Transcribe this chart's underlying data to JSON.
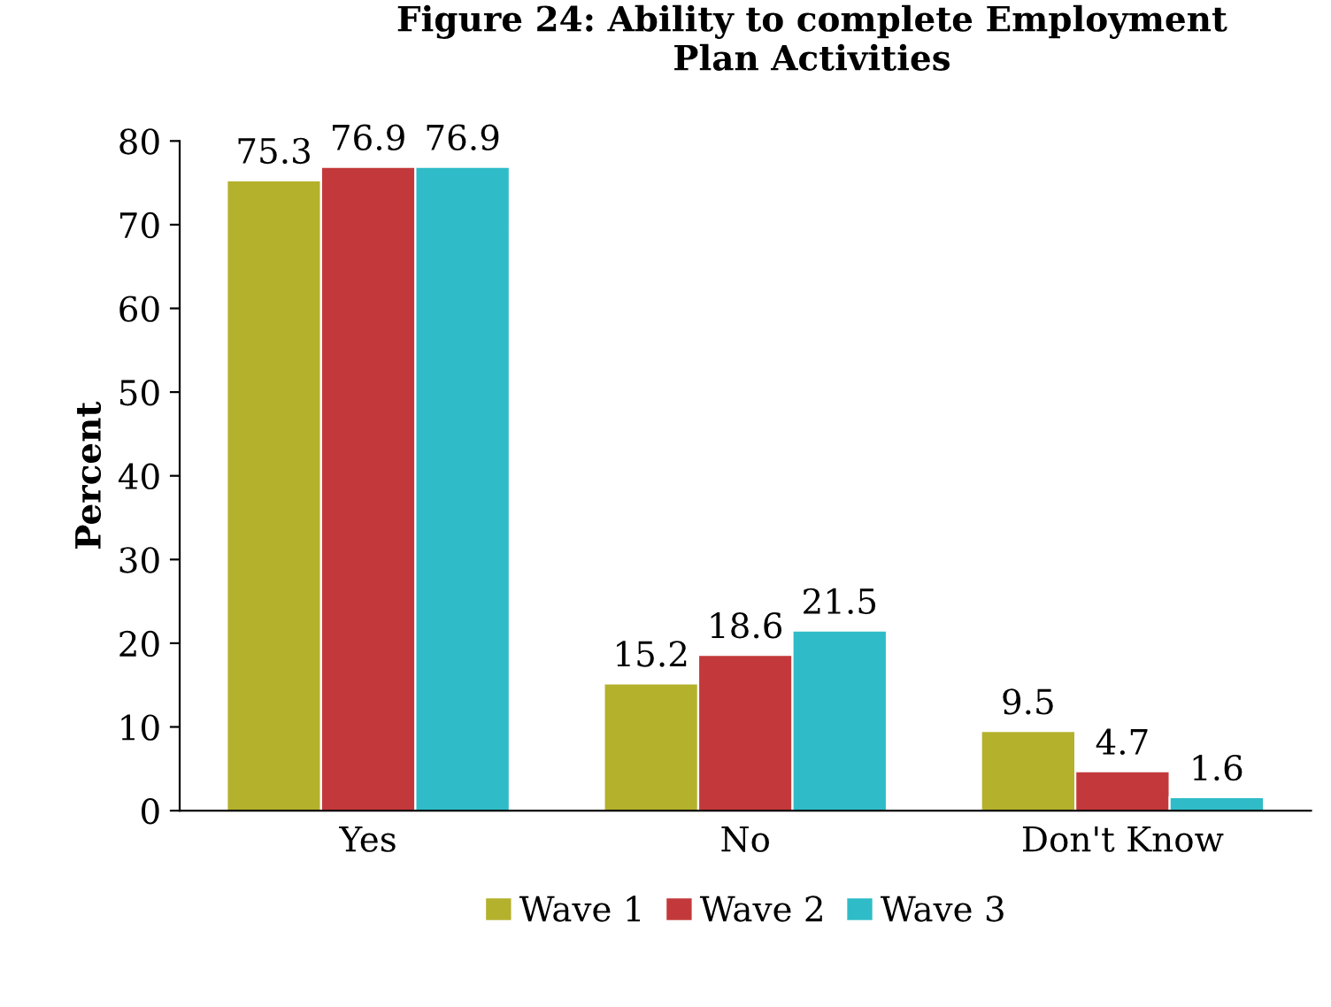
{
  "chart_data": {
    "type": "bar",
    "title": "Figure 24: Ability to complete Employment\nPlan Activities",
    "ylabel": "Percent",
    "categories": [
      "Yes",
      "No",
      "Don't Know"
    ],
    "series": [
      {
        "name": "Wave 1",
        "color": "#b4b12c",
        "values": [
          75.3,
          15.2,
          9.5
        ]
      },
      {
        "name": "Wave 2",
        "color": "#c3393b",
        "values": [
          76.9,
          18.6,
          4.7
        ]
      },
      {
        "name": "Wave 3",
        "color": "#2fbcc8",
        "values": [
          76.9,
          21.5,
          1.6
        ]
      }
    ],
    "ylim": [
      0,
      80
    ],
    "yticks": [
      0,
      10,
      20,
      30,
      40,
      50,
      60,
      70,
      80
    ],
    "grid": false,
    "legend": "bottom",
    "data_labels": true
  }
}
